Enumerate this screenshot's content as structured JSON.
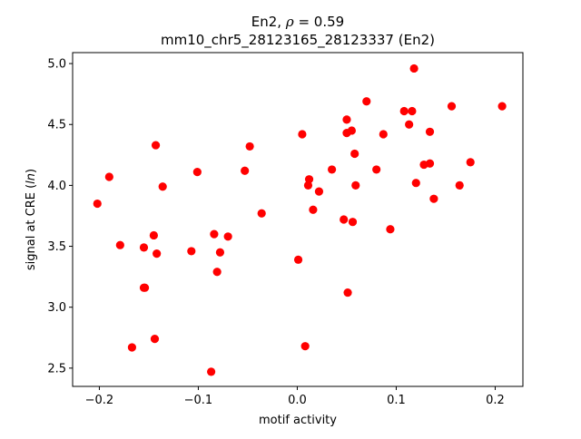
{
  "chart_data": {
    "type": "scatter",
    "title_line1_prefix": "En2, ",
    "title_line1_rho": "ρ",
    "title_line1_suffix": " = 0.59",
    "title_line2": "mm10_chr5_28123165_28123337 (En2)",
    "xlabel": "motif activity",
    "ylabel_prefix": "signal at CRE (",
    "ylabel_italic": "ln",
    "ylabel_suffix": ")",
    "xlim": [
      -0.227,
      0.228
    ],
    "ylim": [
      2.35,
      5.09
    ],
    "x_ticks": [
      -0.2,
      -0.1,
      0.0,
      0.1,
      0.2
    ],
    "x_tick_labels": [
      "−0.2",
      "−0.1",
      "0.0",
      "0.1",
      "0.2"
    ],
    "y_ticks": [
      2.5,
      3.0,
      3.5,
      4.0,
      4.5,
      5.0
    ],
    "y_tick_labels": [
      "2.5",
      "3.0",
      "3.5",
      "4.0",
      "4.5",
      "5.0"
    ],
    "marker_color": "#ff0000",
    "grid": false,
    "points": [
      {
        "x": -0.202,
        "y": 3.85
      },
      {
        "x": -0.19,
        "y": 4.07
      },
      {
        "x": -0.179,
        "y": 3.51
      },
      {
        "x": -0.167,
        "y": 2.67
      },
      {
        "x": -0.155,
        "y": 3.49
      },
      {
        "x": -0.155,
        "y": 3.16
      },
      {
        "x": -0.154,
        "y": 3.16
      },
      {
        "x": -0.145,
        "y": 3.59
      },
      {
        "x": -0.144,
        "y": 2.74
      },
      {
        "x": -0.143,
        "y": 4.33
      },
      {
        "x": -0.142,
        "y": 3.44
      },
      {
        "x": -0.136,
        "y": 3.99
      },
      {
        "x": -0.107,
        "y": 3.46
      },
      {
        "x": -0.101,
        "y": 4.11
      },
      {
        "x": -0.087,
        "y": 2.47
      },
      {
        "x": -0.084,
        "y": 3.6
      },
      {
        "x": -0.081,
        "y": 3.29
      },
      {
        "x": -0.078,
        "y": 3.45
      },
      {
        "x": -0.07,
        "y": 3.58
      },
      {
        "x": -0.053,
        "y": 4.12
      },
      {
        "x": -0.048,
        "y": 4.32
      },
      {
        "x": -0.036,
        "y": 3.77
      },
      {
        "x": 0.001,
        "y": 3.39
      },
      {
        "x": 0.005,
        "y": 4.42
      },
      {
        "x": 0.008,
        "y": 2.68
      },
      {
        "x": 0.011,
        "y": 4.0
      },
      {
        "x": 0.012,
        "y": 4.05
      },
      {
        "x": 0.016,
        "y": 3.8
      },
      {
        "x": 0.022,
        "y": 3.95
      },
      {
        "x": 0.035,
        "y": 4.13
      },
      {
        "x": 0.047,
        "y": 3.72
      },
      {
        "x": 0.05,
        "y": 4.54
      },
      {
        "x": 0.05,
        "y": 4.43
      },
      {
        "x": 0.051,
        "y": 3.12
      },
      {
        "x": 0.055,
        "y": 4.45
      },
      {
        "x": 0.056,
        "y": 3.7
      },
      {
        "x": 0.058,
        "y": 4.26
      },
      {
        "x": 0.059,
        "y": 4.0
      },
      {
        "x": 0.07,
        "y": 4.69
      },
      {
        "x": 0.08,
        "y": 4.13
      },
      {
        "x": 0.087,
        "y": 4.42
      },
      {
        "x": 0.094,
        "y": 3.64
      },
      {
        "x": 0.108,
        "y": 4.61
      },
      {
        "x": 0.113,
        "y": 4.5
      },
      {
        "x": 0.116,
        "y": 4.61
      },
      {
        "x": 0.118,
        "y": 4.96
      },
      {
        "x": 0.12,
        "y": 4.02
      },
      {
        "x": 0.128,
        "y": 4.17
      },
      {
        "x": 0.134,
        "y": 4.44
      },
      {
        "x": 0.134,
        "y": 4.18
      },
      {
        "x": 0.138,
        "y": 3.89
      },
      {
        "x": 0.156,
        "y": 4.65
      },
      {
        "x": 0.164,
        "y": 4.0
      },
      {
        "x": 0.175,
        "y": 4.19
      },
      {
        "x": 0.207,
        "y": 4.65
      }
    ]
  }
}
